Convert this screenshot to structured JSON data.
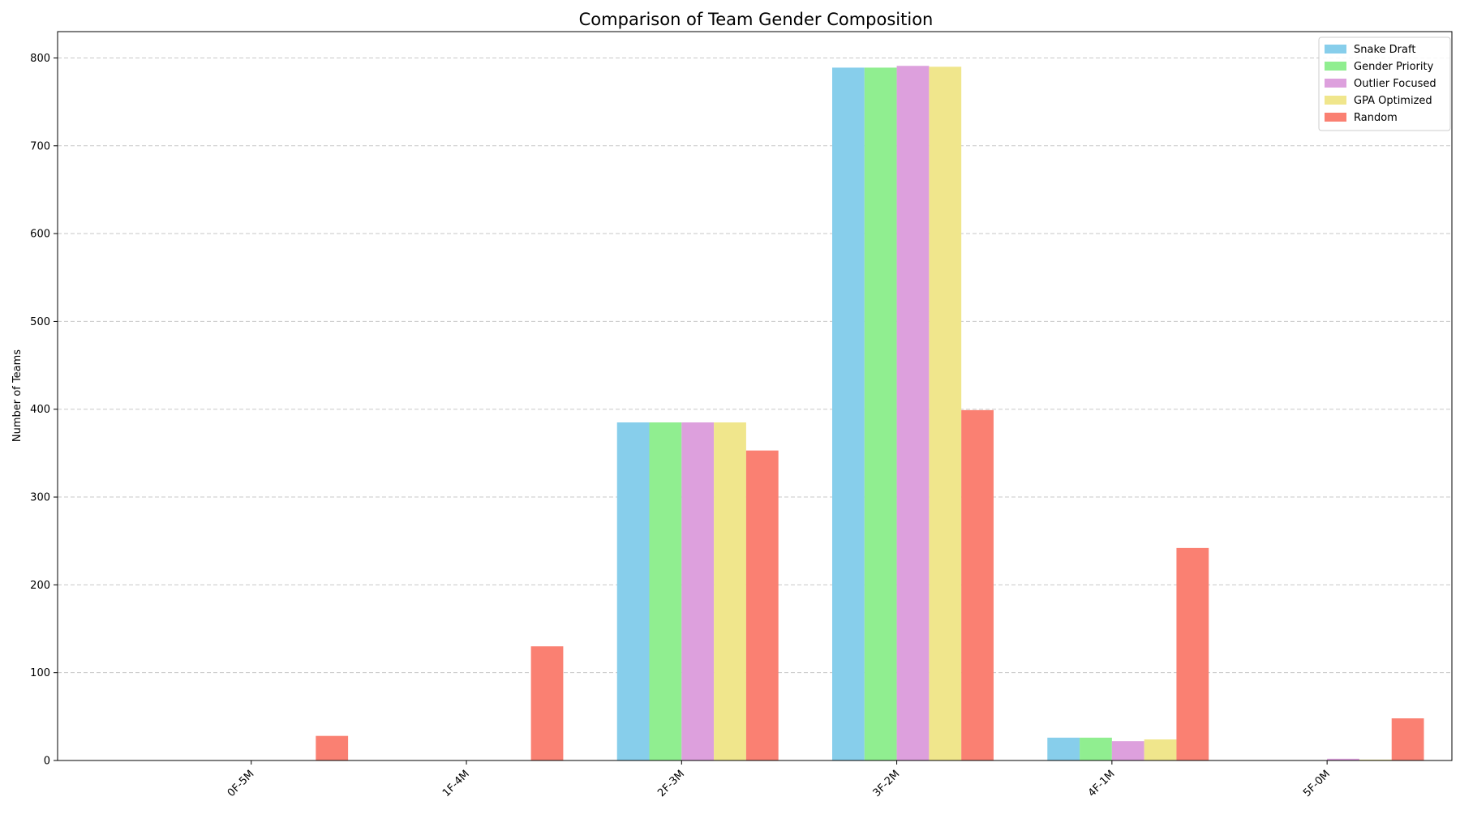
{
  "chart_data": {
    "type": "bar",
    "title": "Comparison of Team Gender Composition",
    "xlabel": "",
    "ylabel": "Number of Teams",
    "categories": [
      "0F-5M",
      "1F-4M",
      "2F-3M",
      "3F-2M",
      "4F-1M",
      "5F-0M"
    ],
    "series": [
      {
        "name": "Snake Draft",
        "color": "#87ceeb",
        "values": [
          0,
          0,
          385,
          789,
          26,
          0
        ]
      },
      {
        "name": "Gender Priority",
        "color": "#90ee90",
        "values": [
          0,
          0,
          385,
          789,
          26,
          0
        ]
      },
      {
        "name": "Outlier Focused",
        "color": "#dda0dd",
        "values": [
          0,
          0,
          385,
          791,
          22,
          2
        ]
      },
      {
        "name": "GPA Optimized",
        "color": "#f0e68c",
        "values": [
          0,
          0,
          385,
          790,
          24,
          1
        ]
      },
      {
        "name": "Random",
        "color": "#fa8072",
        "values": [
          28,
          130,
          353,
          399,
          242,
          48
        ]
      }
    ],
    "ylim": [
      0,
      830
    ],
    "yticks": [
      "0",
      "100",
      "200",
      "300",
      "400",
      "500",
      "600",
      "700",
      "800"
    ],
    "grid": "y-dashed",
    "legend_placement": "top-right"
  }
}
